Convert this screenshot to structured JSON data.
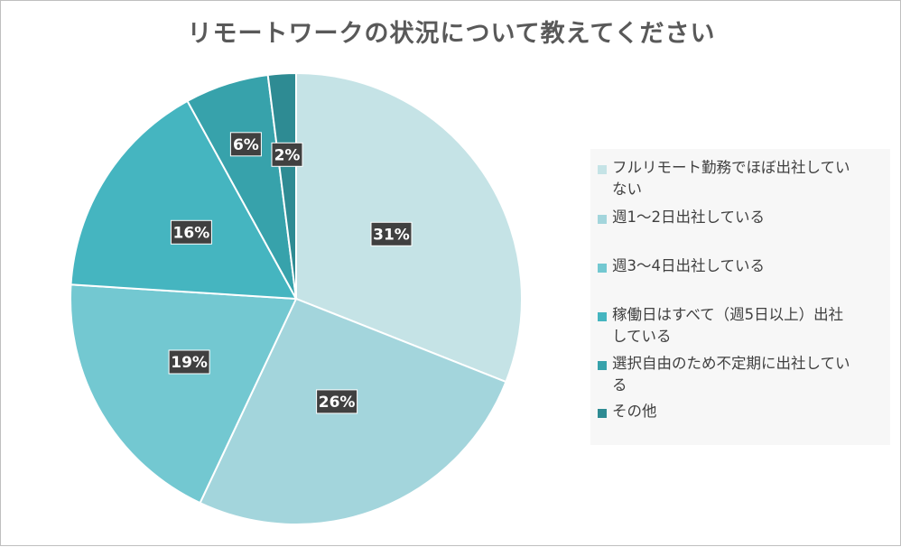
{
  "chart_data": {
    "type": "pie",
    "title": "リモートワークの状況について教えてください",
    "categories": [
      "フルリモート勤務でほぼ出社していない",
      "週1〜2日出社している",
      "週3〜4日出社している",
      "稼働日はすべて（週5日以上）出社している",
      "選択自由のため不定期に出社している",
      "その他"
    ],
    "values": [
      31,
      26,
      19,
      16,
      6,
      2
    ],
    "data_labels": [
      "31%",
      "26%",
      "19%",
      "16%",
      "6%",
      "2%"
    ],
    "colors": [
      "#c5e3e6",
      "#a3d5dc",
      "#73c8d1",
      "#45b5c0",
      "#37a2ab",
      "#2e8b93"
    ],
    "legend": {
      "position": "right",
      "lines": [
        [
          "フルリモート勤務でほぼ出社してい",
          "ない"
        ],
        [
          "週1〜2日出社している"
        ],
        [
          "週3〜4日出社している"
        ],
        [
          "稼働日はすべて（週5日以上）出社",
          "している"
        ],
        [
          "選択自由のため不定期に出社してい",
          "る"
        ],
        [
          "その他"
        ]
      ]
    }
  }
}
